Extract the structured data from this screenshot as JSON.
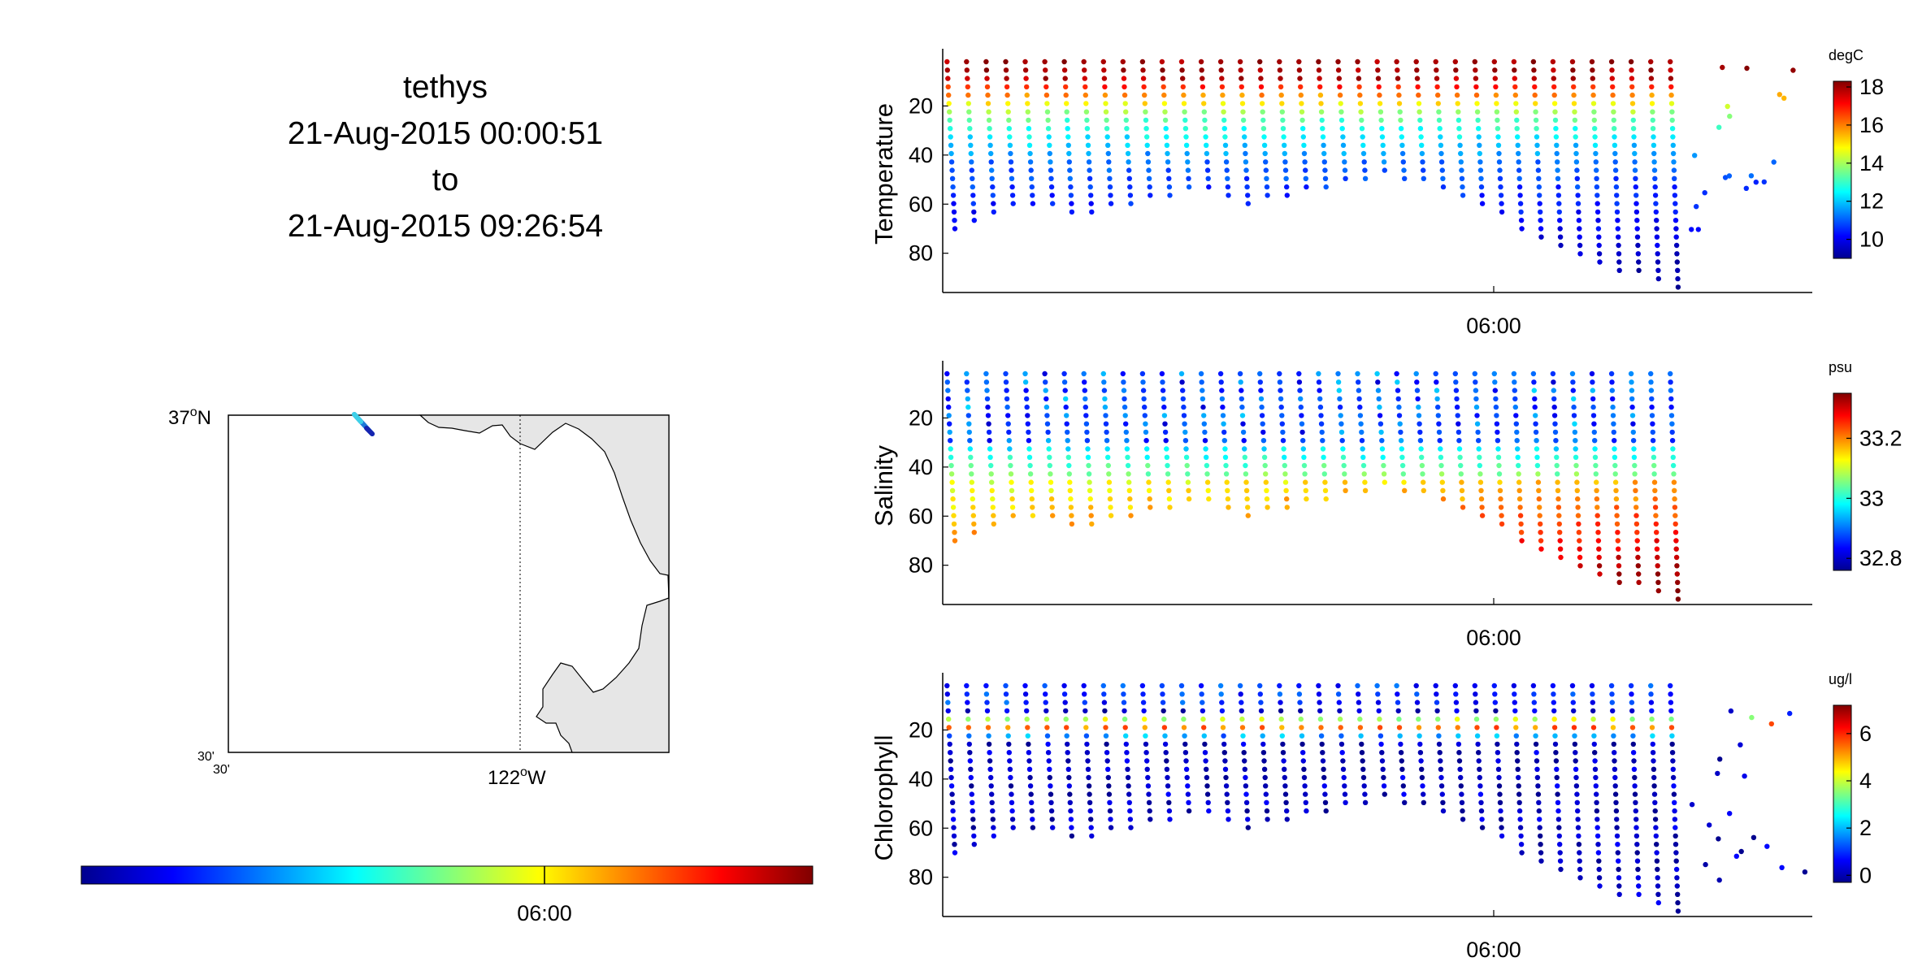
{
  "header": {
    "vehicle": "tethys",
    "start": "21-Aug-2015 00:00:51",
    "to": "to",
    "end": "21-Aug-2015 09:26:54"
  },
  "map": {
    "lat_label": "37",
    "lat_suffix": "N",
    "lon_label": "122",
    "lon_suffix": "W",
    "corner_top": "30'",
    "corner_bottom": "30'",
    "degree_mark": "o",
    "land_color": "#e6e6e6"
  },
  "time_colorbar": {
    "tick_label": "06:00"
  },
  "colors": {
    "jet": [
      "#00008f",
      "#0000ff",
      "#00ffff",
      "#ffff00",
      "#ff0000",
      "#800000"
    ]
  },
  "chart_data": [
    {
      "type": "scatter",
      "ylabel": "Temperature",
      "xtick_label": "06:00",
      "y_reversed": true,
      "ylim": [
        0,
        96
      ],
      "yticks": [
        "20",
        "40",
        "60",
        "80"
      ],
      "colorbar_unit": "degC",
      "colorbar_range": [
        9,
        18.3
      ],
      "colorbar_ticks": [
        "10",
        "12",
        "14",
        "16",
        "18"
      ],
      "profile": {
        "surface": 18,
        "thermocline_top": 16,
        "thermocline_bottom": 14,
        "deep": 9.5
      },
      "depth_max": [
        70,
        68,
        65,
        63,
        62,
        60,
        66,
        64,
        62,
        60,
        58,
        57,
        56,
        55,
        58,
        60,
        58,
        57,
        56,
        55,
        52,
        50,
        48,
        50,
        52,
        55,
        58,
        62,
        66,
        70,
        74,
        78,
        82,
        86,
        88,
        90,
        92,
        95
      ]
    },
    {
      "type": "scatter",
      "ylabel": "Salinity",
      "xtick_label": "06:00",
      "y_reversed": true,
      "ylim": [
        0,
        96
      ],
      "yticks": [
        "20",
        "40",
        "60",
        "80"
      ],
      "colorbar_unit": "psu",
      "colorbar_range": [
        32.76,
        33.35
      ],
      "colorbar_ticks": [
        "32.8",
        "33",
        "33.2"
      ],
      "profile": {
        "surface": 32.9,
        "mid": 33.0,
        "deep": 33.3
      },
      "depth_max": [
        70,
        68,
        65,
        63,
        62,
        60,
        66,
        64,
        62,
        60,
        58,
        57,
        56,
        55,
        58,
        60,
        58,
        57,
        56,
        55,
        52,
        50,
        48,
        50,
        52,
        55,
        58,
        62,
        66,
        70,
        74,
        78,
        82,
        86,
        88,
        90,
        92,
        95
      ]
    },
    {
      "type": "scatter",
      "ylabel": "Chlorophyll",
      "xtick_label": "06:00",
      "y_reversed": true,
      "ylim": [
        0,
        96
      ],
      "yticks": [
        "20",
        "40",
        "60",
        "80"
      ],
      "colorbar_unit": "ug/l",
      "colorbar_range": [
        -0.3,
        7.2
      ],
      "colorbar_ticks": [
        "0",
        "2",
        "4",
        "6"
      ],
      "profile": {
        "surface": 0.5,
        "max_depth": 18,
        "max_value": 6.5,
        "deep": 0
      },
      "depth_max": [
        70,
        68,
        65,
        63,
        62,
        60,
        66,
        64,
        62,
        60,
        58,
        57,
        56,
        55,
        58,
        60,
        58,
        57,
        56,
        55,
        52,
        50,
        48,
        50,
        52,
        55,
        58,
        62,
        66,
        70,
        74,
        78,
        82,
        86,
        88,
        90,
        92,
        95
      ]
    }
  ]
}
